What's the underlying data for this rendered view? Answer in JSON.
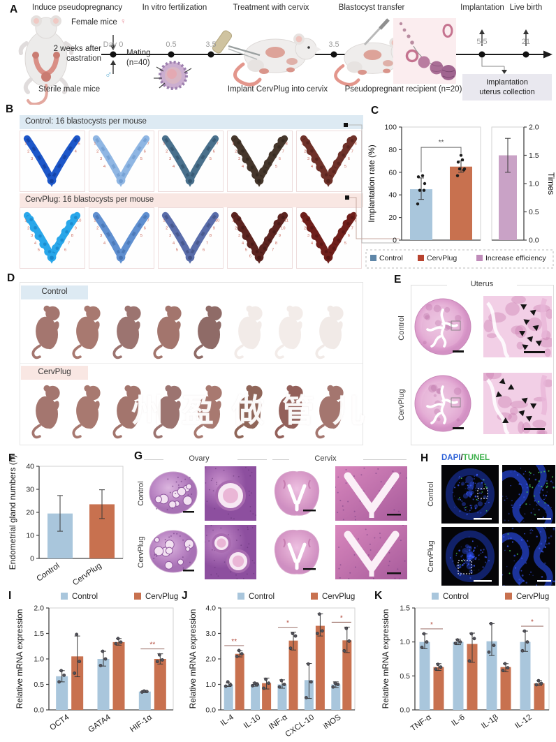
{
  "colors": {
    "control": "#a9c6dc",
    "cervplug": "#c8714f",
    "efficiency": "#c9a2c6",
    "control_legend": "#5e86a8",
    "cervplug_legend": "#b8432f",
    "efficiency_legend": "#c08cba",
    "header_blue": "#ddeaf3",
    "header_pink": "#f9e7e3",
    "dapi_blue": "#2f63d8",
    "tunel_green": "#3db04b",
    "sig_mark": "#b2483a"
  },
  "panelA": {
    "label": "A",
    "titles": {
      "induce": "Induce pseudopregnancy",
      "ivf": "In vitro fertilization",
      "treatment": "Treatment with cervix",
      "transfer": "Blastocyst transfer",
      "implantation": "Implantation",
      "livebirth": "Live birth"
    },
    "female_mice": "Female mice",
    "female_symbol": "♀",
    "male_symbol": "♂",
    "castration_line1": "2 weeks after",
    "castration_line2": "castration",
    "sterile": "Sterile male mice",
    "day0": "Day 0",
    "mating": "Mating",
    "mating_n": "(n=40)",
    "t05": "0.5",
    "t35a": "3.5",
    "t35b": "3.5",
    "t55": "5.5",
    "t21": "21",
    "implant_caption": "Implant CervPlug into cervix",
    "recipient_caption": "Pseudopregnant recipient (n=20)",
    "collection_line1": "Implantation",
    "collection_line2": "uterus collection"
  },
  "panelB": {
    "label": "B",
    "control_header": "Control: 16 blastocysts per mouse",
    "cervplug_header": "CervPlug: 16 blastocysts per mouse",
    "control_uteri": [
      {
        "color": "#1d57c9",
        "edge": "#0c2f86",
        "count": 5,
        "bumpy": false
      },
      {
        "color": "#8fb6e3",
        "edge": "#5d8cc4",
        "count": 7,
        "bumpy": false
      },
      {
        "color": "#49708c",
        "edge": "#24435c",
        "count": 7,
        "bumpy": false
      },
      {
        "color": "#45362b",
        "edge": "#2a1f18",
        "count": 8,
        "bumpy": true
      },
      {
        "color": "#6e3129",
        "edge": "#471a15",
        "count": 8,
        "bumpy": true
      }
    ],
    "cervplug_uteri": [
      {
        "color": "#29a7ea",
        "edge": "#0d73b8",
        "count": 10,
        "bumpy": true
      },
      {
        "color": "#5f8fd0",
        "edge": "#35619e",
        "count": 7,
        "bumpy": false
      },
      {
        "color": "#5a6daa",
        "edge": "#32406e",
        "count": 10,
        "bumpy": false
      },
      {
        "color": "#5c2420",
        "edge": "#3a120f",
        "count": 11,
        "bumpy": true
      },
      {
        "color": "#6f1f1b",
        "edge": "#49100d",
        "count": 8,
        "bumpy": true
      }
    ]
  },
  "panelC": {
    "label": "C"
  },
  "panelD": {
    "label": "D",
    "control_header": "Control",
    "cervplug_header": "CervPlug",
    "watermark": "州盈做管儿",
    "control_pups": [
      "#a4766f",
      "#a87970",
      "#9c7470",
      "#a3756d",
      "#8f6b67",
      "#f2ebe8",
      "#f3ece9",
      "#f1eae7"
    ],
    "cervplug_pups": [
      "#a4766f",
      "#a87970",
      "#a3756d",
      "#9c7470",
      "#a87970",
      "#8f6558",
      "#93605a",
      "#a4766f"
    ]
  },
  "panelE": {
    "label": "E",
    "title": "Uterus",
    "row1": "Control",
    "row2": "CervPlug"
  },
  "panelF": {
    "label": "F"
  },
  "panelG": {
    "label": "G",
    "col1": "Ovary",
    "col2": "Cervix",
    "row1": "Control",
    "row2": "CervPlug"
  },
  "panelH": {
    "label": "H",
    "title_dapi": "DAPI",
    "title_slash": "/",
    "title_tunel": "TUNEL",
    "row1": "Control",
    "row2": "CervPlug"
  },
  "panelI": {
    "label": "I"
  },
  "panelJ": {
    "label": "J"
  },
  "panelK": {
    "label": "K"
  },
  "chart_data": [
    {
      "panel": "C",
      "type": "bar",
      "ylabel": "Implantation rate (%)",
      "ylim": [
        0,
        100
      ],
      "yticks": [
        0,
        20,
        40,
        60,
        80,
        100
      ],
      "ytick_labels": [
        "0",
        "20",
        "40",
        "60",
        "80",
        "100"
      ],
      "categories": [
        "Control",
        "CervPlug"
      ],
      "values": [
        45,
        65
      ],
      "errors": [
        [
          36,
          55
        ],
        [
          60,
          70
        ]
      ],
      "points": [
        [
          32,
          44,
          44,
          50,
          56,
          57
        ],
        [
          57,
          62,
          63,
          63,
          69,
          71,
          75
        ]
      ],
      "significance": {
        "mark": "**"
      },
      "secondary": {
        "category": "Increase efficiency",
        "value": 1.5,
        "error": [
          1.2,
          1.8
        ],
        "ylabel": "Times",
        "ylim": [
          0,
          2
        ],
        "yticks": [
          0,
          0.5,
          1,
          1.5,
          2
        ],
        "ytick_labels": [
          "0.0",
          "0.5",
          "1.0",
          "1.5",
          "2.0"
        ]
      },
      "legend": [
        "Control",
        "CervPlug",
        "Increase efficiency"
      ]
    },
    {
      "panel": "F",
      "type": "bar",
      "ylabel": "Endometrial gland numbers (n)",
      "ylim": [
        0,
        40
      ],
      "yticks": [
        0,
        10,
        20,
        30,
        40
      ],
      "ytick_labels": [
        "0",
        "10",
        "20",
        "30",
        "40"
      ],
      "categories": [
        "Control",
        "CervPlug"
      ],
      "values": [
        19.5,
        23.5
      ],
      "errors": [
        [
          11.8,
          27.3
        ],
        [
          17.3,
          29.8
        ]
      ]
    },
    {
      "panel": "I",
      "type": "bar",
      "ylabel": "Relative mRNA expression",
      "ylim": [
        0,
        2
      ],
      "yticks": [
        0,
        0.5,
        1,
        1.5,
        2
      ],
      "ytick_labels": [
        "0.0",
        "0.5",
        "1.0",
        "1.5",
        "2.0"
      ],
      "categories": [
        "OCT4",
        "GATA4",
        "HIF-1α"
      ],
      "series": [
        {
          "name": "Control",
          "values": [
            0.66,
            1.0,
            0.36
          ],
          "errors": [
            [
              0.55,
              0.77
            ],
            [
              0.86,
              1.15
            ],
            [
              0.34,
              0.38
            ]
          ],
          "points": [
            [
              0.55,
              0.68,
              0.77
            ],
            [
              0.87,
              1.0,
              1.15
            ],
            [
              0.35,
              0.36,
              0.37
            ]
          ]
        },
        {
          "name": "CervPlug",
          "values": [
            1.05,
            1.33,
            1.0
          ],
          "errors": [
            [
              0.65,
              1.45
            ],
            [
              1.27,
              1.4
            ],
            [
              0.9,
              1.1
            ]
          ],
          "points": [
            [
              0.72,
              0.95,
              1.48
            ],
            [
              1.3,
              1.33,
              1.4
            ],
            [
              0.95,
              0.98,
              1.08
            ]
          ]
        }
      ],
      "significance": [
        {
          "index": 2,
          "mark": "**"
        }
      ]
    },
    {
      "panel": "J",
      "type": "bar",
      "ylabel": "Relative mRNA expression",
      "ylim": [
        0,
        4
      ],
      "yticks": [
        0,
        1,
        2,
        3,
        4
      ],
      "ytick_labels": [
        "0.0",
        "1.0",
        "2.0",
        "3.0",
        "4.0"
      ],
      "categories": [
        "IL-4",
        "IL-10",
        "INF-α",
        "CXCL-10",
        "iNOS"
      ],
      "series": [
        {
          "name": "Control",
          "values": [
            0.98,
            1.0,
            1.0,
            1.17,
            1.0
          ],
          "errors": [
            [
              0.92,
              1.06
            ],
            [
              0.93,
              1.07
            ],
            [
              0.85,
              1.18
            ],
            [
              0.45,
              1.82
            ],
            [
              0.88,
              1.1
            ]
          ],
          "points": [
            [
              0.93,
              0.98,
              1.1
            ],
            [
              0.95,
              1.0,
              1.05
            ],
            [
              0.9,
              1.0,
              1.15
            ],
            [
              0.48,
              1.1,
              1.8
            ],
            [
              0.9,
              1.0,
              1.05
            ]
          ]
        },
        {
          "name": "CervPlug",
          "values": [
            2.2,
            1.05,
            2.72,
            3.3,
            2.73
          ],
          "errors": [
            [
              2.08,
              2.32
            ],
            [
              0.82,
              1.25
            ],
            [
              2.35,
              3.05
            ],
            [
              2.9,
              3.77
            ],
            [
              2.25,
              3.25
            ]
          ],
          "points": [
            [
              2.1,
              2.2,
              2.33
            ],
            [
              0.85,
              1.05,
              1.2
            ],
            [
              2.42,
              2.9,
              3.0
            ],
            [
              3.0,
              3.1,
              3.76
            ],
            [
              2.32,
              2.7,
              3.2
            ]
          ]
        }
      ],
      "significance": [
        {
          "index": 0,
          "mark": "**"
        },
        {
          "index": 2,
          "mark": "*"
        },
        {
          "index": 4,
          "mark": "*"
        }
      ]
    },
    {
      "panel": "K",
      "type": "bar",
      "ylabel": "Relative mRNA expression",
      "ylim": [
        0,
        1.5
      ],
      "yticks": [
        0,
        0.5,
        1,
        1.5
      ],
      "ytick_labels": [
        "0.0",
        "0.5",
        "1.0",
        "1.5"
      ],
      "categories": [
        "TNF-α",
        "IL-6",
        "IL-1β",
        "IL-12"
      ],
      "series": [
        {
          "name": "Control",
          "values": [
            1.0,
            1.0,
            1.01,
            1.0
          ],
          "errors": [
            [
              0.9,
              1.12
            ],
            [
              0.96,
              1.04
            ],
            [
              0.8,
              1.27
            ],
            [
              0.86,
              1.16
            ]
          ],
          "points": [
            [
              0.92,
              1.0,
              1.12
            ],
            [
              0.98,
              1.0,
              1.03
            ],
            [
              0.85,
              0.95,
              1.27
            ],
            [
              0.87,
              1.0,
              1.16
            ]
          ]
        },
        {
          "name": "CervPlug",
          "values": [
            0.63,
            0.97,
            0.63,
            0.39
          ],
          "errors": [
            [
              0.58,
              0.68
            ],
            [
              0.7,
              1.13
            ],
            [
              0.56,
              0.68
            ],
            [
              0.36,
              0.43
            ]
          ],
          "points": [
            [
              0.6,
              0.63,
              0.67
            ],
            [
              0.72,
              1.05,
              1.12
            ],
            [
              0.58,
              0.62,
              0.68
            ],
            [
              0.37,
              0.39,
              0.43
            ]
          ]
        }
      ],
      "significance": [
        {
          "index": 0,
          "mark": "*"
        },
        {
          "index": 3,
          "mark": "*"
        }
      ]
    }
  ]
}
